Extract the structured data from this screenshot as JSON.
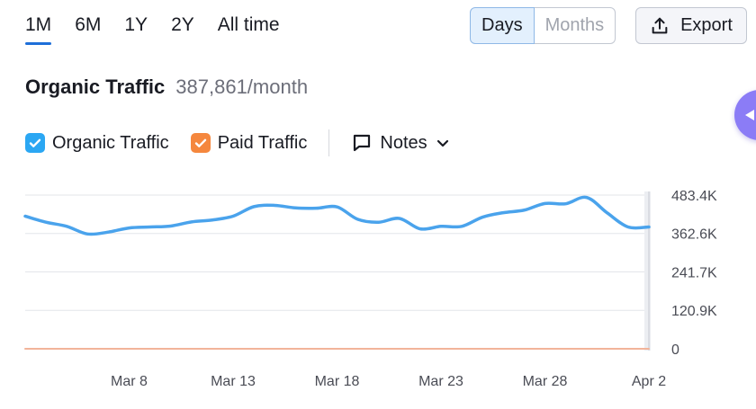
{
  "range_tabs": [
    {
      "label": "1M",
      "active": true
    },
    {
      "label": "6M",
      "active": false
    },
    {
      "label": "1Y",
      "active": false
    },
    {
      "label": "2Y",
      "active": false
    },
    {
      "label": "All time",
      "active": false
    }
  ],
  "granularity": {
    "days": "Days",
    "months": "Months",
    "selected": "Days"
  },
  "export": {
    "label": "Export",
    "icon": "upload-icon"
  },
  "metric": {
    "title": "Organic Traffic",
    "value": "387,861/month"
  },
  "legend": {
    "items": [
      {
        "label": "Organic Traffic",
        "color": "#2ba7f3",
        "checked": true
      },
      {
        "label": "Paid Traffic",
        "color": "#f5873e",
        "checked": true
      }
    ],
    "notes_label": "Notes"
  },
  "colors": {
    "organic": "#4aa3ec",
    "paid": "#f2b49a",
    "grid": "#e3e5ea",
    "accent": "#1e6fd9"
  },
  "chart_data": {
    "type": "line",
    "x": [
      "Mar 3",
      "Mar 4",
      "Mar 5",
      "Mar 6",
      "Mar 7",
      "Mar 8",
      "Mar 9",
      "Mar 10",
      "Mar 11",
      "Mar 12",
      "Mar 13",
      "Mar 14",
      "Mar 15",
      "Mar 16",
      "Mar 17",
      "Mar 18",
      "Mar 19",
      "Mar 20",
      "Mar 21",
      "Mar 22",
      "Mar 23",
      "Mar 24",
      "Mar 25",
      "Mar 26",
      "Mar 27",
      "Mar 28",
      "Mar 29",
      "Mar 30",
      "Mar 31",
      "Apr 1",
      "Apr 2"
    ],
    "x_ticks": [
      "Mar 8",
      "Mar 13",
      "Mar 18",
      "Mar 23",
      "Mar 28",
      "Apr 2"
    ],
    "y_ticks": [
      {
        "value": 0,
        "label": "0"
      },
      {
        "value": 120900,
        "label": "120.9K"
      },
      {
        "value": 241700,
        "label": "241.7K"
      },
      {
        "value": 362600,
        "label": "362.6K"
      },
      {
        "value": 483400,
        "label": "483.4K"
      }
    ],
    "ylim": [
      0,
      483400
    ],
    "series": [
      {
        "name": "Organic Traffic",
        "values": [
          417000,
          398000,
          385000,
          361000,
          367000,
          380000,
          383000,
          386000,
          399000,
          405000,
          417000,
          447000,
          451000,
          443000,
          442000,
          446000,
          407000,
          398000,
          410000,
          377000,
          385000,
          385000,
          414000,
          428000,
          436000,
          457000,
          456000,
          476000,
          427000,
          383000,
          383000
        ]
      },
      {
        "name": "Paid Traffic",
        "values": [
          0,
          0,
          0,
          0,
          0,
          0,
          0,
          0,
          0,
          0,
          0,
          0,
          0,
          0,
          0,
          0,
          0,
          0,
          0,
          0,
          0,
          0,
          0,
          0,
          0,
          0,
          0,
          0,
          0,
          0,
          0
        ]
      }
    ]
  }
}
